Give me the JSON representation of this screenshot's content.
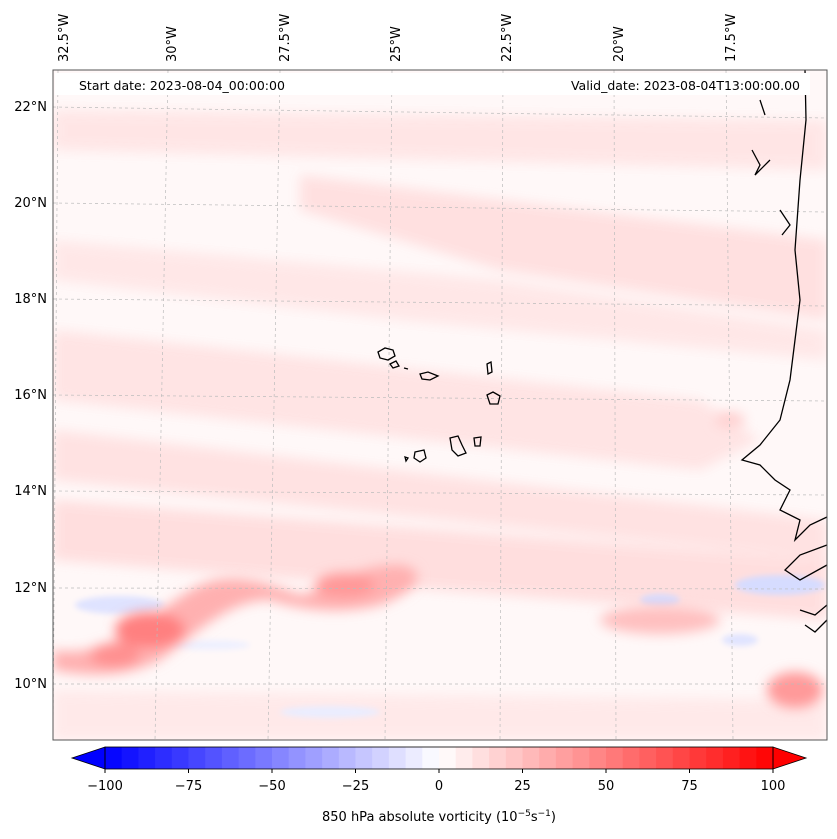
{
  "header": {
    "start_date": "Start date: 2023-08-04_00:00:00",
    "valid_date": "Valid_date: 2023-08-04T13:00:00.00"
  },
  "longitude_ticks": [
    "32.5°W",
    "30°W",
    "27.5°W",
    "25°W",
    "22.5°W",
    "20°W",
    "17.5°W"
  ],
  "latitude_ticks": [
    "22°N",
    "20°N",
    "18°N",
    "16°N",
    "14°N",
    "12°N",
    "10°N"
  ],
  "colorbar": {
    "label_prefix": "850 hPa absolute vorticity (10",
    "label_exp1": "−5",
    "label_mid": "s",
    "label_exp2": "−1",
    "label_suffix": ")",
    "ticks": [
      "−100",
      "−75",
      "−50",
      "−25",
      "0",
      "25",
      "50",
      "75",
      "100"
    ],
    "min": -100,
    "max": 100,
    "low_color": "#0000ff",
    "mid_color": "#ffffff",
    "high_color": "#ff0000"
  },
  "colors": {
    "coastline": "#000000",
    "gridline": "#bbbbbb",
    "positive_fill": "#ffd6d6",
    "strong_positive_fill": "#ff7a7a",
    "negative_fill": "#dfe3ff"
  }
}
